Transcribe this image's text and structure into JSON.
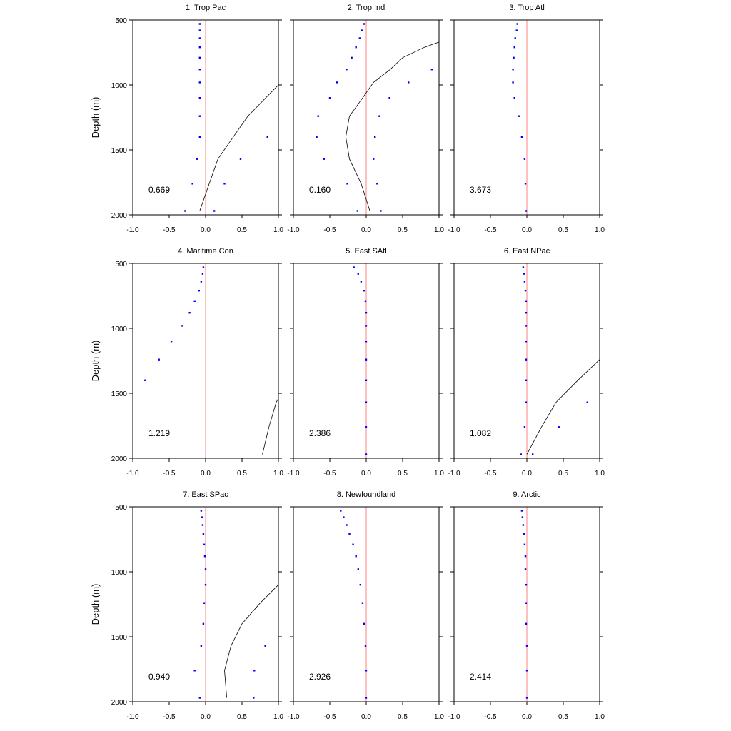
{
  "colors": {
    "zero_line": "#ff8080",
    "dots": "#0000ff",
    "curve": "#000000",
    "frame": "#000000"
  },
  "y_axis_label": "Depth (m)",
  "chart_data": [
    {
      "type": "scatter",
      "title": "1. Trop Pac",
      "value_label": "0.669",
      "xlim": [
        -1.0,
        1.0
      ],
      "ylim": [
        500,
        2000
      ],
      "y_reversed": true,
      "grid": false,
      "x_ticks": [
        "-1.0",
        "-0.5",
        "0.0",
        "0.5",
        "1.0"
      ],
      "y_ticks": [
        "500",
        "1000",
        "1500",
        "2000"
      ],
      "series": [
        {
          "style": "dots",
          "points": [
            [
              -0.08,
              530
            ],
            [
              -0.08,
              580
            ],
            [
              -0.08,
              640
            ],
            [
              -0.08,
              710
            ],
            [
              -0.08,
              790
            ],
            [
              -0.08,
              880
            ],
            [
              -0.08,
              980
            ],
            [
              -0.08,
              1100
            ],
            [
              -0.08,
              1240
            ],
            [
              -0.08,
              1400
            ],
            [
              -0.12,
              1570
            ],
            [
              -0.18,
              1760
            ],
            [
              -0.28,
              1970
            ],
            [
              0.85,
              1400
            ],
            [
              0.48,
              1570
            ],
            [
              0.26,
              1760
            ],
            [
              0.12,
              1970
            ]
          ]
        },
        {
          "style": "line",
          "points": [
            [
              1.0,
              1000
            ],
            [
              0.58,
              1240
            ],
            [
              0.38,
              1400
            ],
            [
              0.17,
              1570
            ],
            [
              0.05,
              1760
            ],
            [
              -0.08,
              1970
            ]
          ]
        }
      ]
    },
    {
      "type": "scatter",
      "title": "2. Trop Ind",
      "value_label": "0.160",
      "xlim": [
        -1.0,
        1.0
      ],
      "ylim": [
        500,
        2000
      ],
      "y_reversed": true,
      "grid": false,
      "x_ticks": [
        "-1.0",
        "-0.5",
        "0.0",
        "0.5",
        "1.0"
      ],
      "y_ticks": [
        "500",
        "1000",
        "1500",
        "2000"
      ],
      "series": [
        {
          "style": "dots",
          "points": [
            [
              -0.03,
              530
            ],
            [
              -0.06,
              580
            ],
            [
              -0.09,
              640
            ],
            [
              -0.14,
              710
            ],
            [
              -0.2,
              790
            ],
            [
              -0.27,
              880
            ],
            [
              -0.4,
              980
            ],
            [
              -0.5,
              1100
            ],
            [
              -0.66,
              1240
            ],
            [
              -0.68,
              1400
            ],
            [
              -0.58,
              1570
            ],
            [
              -0.26,
              1760
            ],
            [
              -0.12,
              1970
            ],
            [
              0.9,
              880
            ],
            [
              0.58,
              980
            ],
            [
              0.32,
              1100
            ],
            [
              0.18,
              1240
            ],
            [
              0.12,
              1400
            ],
            [
              0.1,
              1570
            ],
            [
              0.15,
              1760
            ],
            [
              0.2,
              1970
            ]
          ]
        },
        {
          "style": "line",
          "points": [
            [
              1.0,
              670
            ],
            [
              0.8,
              710
            ],
            [
              0.5,
              790
            ],
            [
              0.33,
              880
            ],
            [
              0.1,
              980
            ],
            [
              -0.05,
              1100
            ],
            [
              -0.23,
              1240
            ],
            [
              -0.28,
              1400
            ],
            [
              -0.23,
              1570
            ],
            [
              -0.07,
              1760
            ],
            [
              0.05,
              1970
            ]
          ]
        }
      ]
    },
    {
      "type": "scatter",
      "title": "3. Trop Atl",
      "value_label": "3.673",
      "xlim": [
        -1.0,
        1.0
      ],
      "ylim": [
        500,
        2000
      ],
      "y_reversed": true,
      "grid": false,
      "x_ticks": [
        "-1.0",
        "-0.5",
        "0.0",
        "0.5",
        "1.0"
      ],
      "y_ticks": [
        "500",
        "1000",
        "1500",
        "2000"
      ],
      "series": [
        {
          "style": "dots",
          "points": [
            [
              -0.13,
              530
            ],
            [
              -0.14,
              580
            ],
            [
              -0.16,
              640
            ],
            [
              -0.17,
              710
            ],
            [
              -0.18,
              790
            ],
            [
              -0.19,
              880
            ],
            [
              -0.19,
              980
            ],
            [
              -0.17,
              1100
            ],
            [
              -0.11,
              1240
            ],
            [
              -0.07,
              1400
            ],
            [
              -0.03,
              1570
            ],
            [
              -0.02,
              1760
            ],
            [
              -0.01,
              1970
            ]
          ]
        }
      ]
    },
    {
      "type": "scatter",
      "title": "4. Maritime Con",
      "value_label": "1.219",
      "xlim": [
        -1.0,
        1.0
      ],
      "ylim": [
        500,
        2000
      ],
      "y_reversed": true,
      "grid": false,
      "x_ticks": [
        "-1.0",
        "-0.5",
        "0.0",
        "0.5",
        "1.0"
      ],
      "y_ticks": [
        "500",
        "1000",
        "1500",
        "2000"
      ],
      "series": [
        {
          "style": "dots",
          "points": [
            [
              -0.03,
              530
            ],
            [
              -0.04,
              580
            ],
            [
              -0.06,
              640
            ],
            [
              -0.09,
              710
            ],
            [
              -0.15,
              790
            ],
            [
              -0.22,
              880
            ],
            [
              -0.32,
              980
            ],
            [
              -0.47,
              1100
            ],
            [
              -0.64,
              1240
            ],
            [
              -0.83,
              1400
            ]
          ]
        },
        {
          "style": "line",
          "points": [
            [
              1.0,
              1540
            ],
            [
              0.97,
              1570
            ],
            [
              0.87,
              1760
            ],
            [
              0.78,
              1970
            ]
          ]
        }
      ]
    },
    {
      "type": "scatter",
      "title": "5. East SAtl",
      "value_label": "2.386",
      "xlim": [
        -1.0,
        1.0
      ],
      "ylim": [
        500,
        2000
      ],
      "y_reversed": true,
      "grid": false,
      "x_ticks": [
        "-1.0",
        "-0.5",
        "0.0",
        "0.5",
        "1.0"
      ],
      "y_ticks": [
        "500",
        "1000",
        "1500",
        "2000"
      ],
      "series": [
        {
          "style": "dots",
          "points": [
            [
              -0.17,
              530
            ],
            [
              -0.11,
              580
            ],
            [
              -0.07,
              640
            ],
            [
              -0.03,
              710
            ],
            [
              -0.01,
              790
            ],
            [
              0.0,
              880
            ],
            [
              0.0,
              980
            ],
            [
              0.0,
              1100
            ],
            [
              0.0,
              1240
            ],
            [
              0.0,
              1400
            ],
            [
              0.0,
              1570
            ],
            [
              0.0,
              1760
            ],
            [
              0.0,
              1970
            ]
          ]
        }
      ]
    },
    {
      "type": "scatter",
      "title": "6. East NPac",
      "value_label": "1.082",
      "xlim": [
        -1.0,
        1.0
      ],
      "ylim": [
        500,
        2000
      ],
      "y_reversed": true,
      "grid": false,
      "x_ticks": [
        "-1.0",
        "-0.5",
        "0.0",
        "0.5",
        "1.0"
      ],
      "y_ticks": [
        "500",
        "1000",
        "1500",
        "2000"
      ],
      "series": [
        {
          "style": "dots",
          "points": [
            [
              -0.05,
              530
            ],
            [
              -0.04,
              580
            ],
            [
              -0.03,
              640
            ],
            [
              -0.02,
              710
            ],
            [
              -0.01,
              790
            ],
            [
              -0.01,
              880
            ],
            [
              -0.01,
              980
            ],
            [
              -0.01,
              1100
            ],
            [
              -0.01,
              1240
            ],
            [
              -0.01,
              1400
            ],
            [
              -0.01,
              1570
            ],
            [
              -0.03,
              1760
            ],
            [
              -0.08,
              1970
            ],
            [
              0.83,
              1570
            ],
            [
              0.44,
              1760
            ],
            [
              0.08,
              1970
            ]
          ]
        },
        {
          "style": "line",
          "points": [
            [
              1.0,
              1240
            ],
            [
              0.7,
              1400
            ],
            [
              0.4,
              1570
            ],
            [
              0.2,
              1760
            ],
            [
              0.0,
              1970
            ]
          ]
        }
      ]
    },
    {
      "type": "scatter",
      "title": "7. East SPac",
      "value_label": "0.940",
      "xlim": [
        -1.0,
        1.0
      ],
      "ylim": [
        500,
        2000
      ],
      "y_reversed": true,
      "grid": false,
      "x_ticks": [
        "-1.0",
        "-0.5",
        "0.0",
        "0.5",
        "1.0"
      ],
      "y_ticks": [
        "500",
        "1000",
        "1500",
        "2000"
      ],
      "series": [
        {
          "style": "dots",
          "points": [
            [
              -0.06,
              530
            ],
            [
              -0.05,
              580
            ],
            [
              -0.04,
              640
            ],
            [
              -0.03,
              710
            ],
            [
              -0.02,
              790
            ],
            [
              -0.01,
              880
            ],
            [
              0.0,
              980
            ],
            [
              0.0,
              1100
            ],
            [
              -0.02,
              1240
            ],
            [
              -0.03,
              1400
            ],
            [
              -0.06,
              1570
            ],
            [
              -0.15,
              1760
            ],
            [
              -0.08,
              1970
            ],
            [
              0.82,
              1570
            ],
            [
              0.67,
              1760
            ],
            [
              0.66,
              1970
            ]
          ]
        },
        {
          "style": "line",
          "points": [
            [
              1.0,
              1100
            ],
            [
              0.75,
              1240
            ],
            [
              0.5,
              1400
            ],
            [
              0.35,
              1570
            ],
            [
              0.26,
              1760
            ],
            [
              0.29,
              1970
            ]
          ]
        }
      ]
    },
    {
      "type": "scatter",
      "title": "8. Newfoundland",
      "value_label": "2.926",
      "xlim": [
        -1.0,
        1.0
      ],
      "ylim": [
        500,
        2000
      ],
      "y_reversed": true,
      "grid": false,
      "x_ticks": [
        "-1.0",
        "-0.5",
        "0.0",
        "0.5",
        "1.0"
      ],
      "y_ticks": [
        "500",
        "1000",
        "1500",
        "2000"
      ],
      "series": [
        {
          "style": "dots",
          "points": [
            [
              -0.35,
              530
            ],
            [
              -0.31,
              580
            ],
            [
              -0.27,
              640
            ],
            [
              -0.23,
              710
            ],
            [
              -0.18,
              790
            ],
            [
              -0.14,
              880
            ],
            [
              -0.11,
              980
            ],
            [
              -0.08,
              1100
            ],
            [
              -0.05,
              1240
            ],
            [
              -0.03,
              1400
            ],
            [
              -0.01,
              1570
            ],
            [
              0.0,
              1760
            ],
            [
              0.0,
              1970
            ]
          ]
        }
      ]
    },
    {
      "type": "scatter",
      "title": "9. Arctic",
      "value_label": "2.414",
      "xlim": [
        -1.0,
        1.0
      ],
      "ylim": [
        500,
        2000
      ],
      "y_reversed": true,
      "grid": false,
      "x_ticks": [
        "-1.0",
        "-0.5",
        "0.0",
        "0.5",
        "1.0"
      ],
      "y_ticks": [
        "500",
        "1000",
        "1500",
        "2000"
      ],
      "series": [
        {
          "style": "dots",
          "points": [
            [
              -0.07,
              530
            ],
            [
              -0.06,
              580
            ],
            [
              -0.05,
              640
            ],
            [
              -0.04,
              710
            ],
            [
              -0.03,
              790
            ],
            [
              -0.02,
              880
            ],
            [
              -0.02,
              980
            ],
            [
              -0.01,
              1100
            ],
            [
              -0.01,
              1240
            ],
            [
              -0.01,
              1400
            ],
            [
              0.0,
              1570
            ],
            [
              0.0,
              1760
            ],
            [
              0.0,
              1970
            ]
          ]
        }
      ]
    }
  ]
}
